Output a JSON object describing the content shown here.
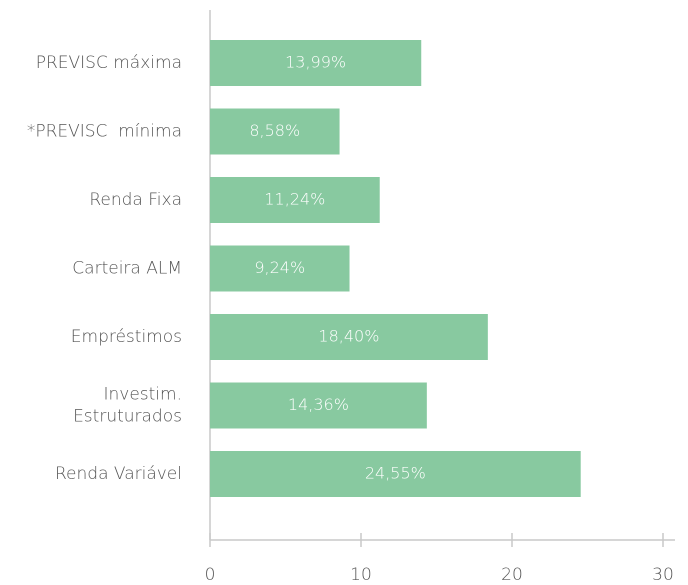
{
  "chart_data": {
    "type": "bar",
    "orientation": "horizontal",
    "categories": [
      "PREVISC máxima",
      "*PREVISC  mínima",
      "Renda Fixa",
      "Carteira ALM",
      "Empréstimos",
      "Investim.\nEstruturados",
      "Renda Variável"
    ],
    "values": [
      13.99,
      8.58,
      11.24,
      9.24,
      18.4,
      14.36,
      24.55
    ],
    "value_labels": [
      "13,99%",
      "8,58%",
      "11,24%",
      "9,24%",
      "18,40%",
      "14,36%",
      "24,55%"
    ],
    "color": "#88c9a0",
    "xlim": [
      0,
      30
    ],
    "xticks": [
      0,
      10,
      20,
      30
    ]
  }
}
